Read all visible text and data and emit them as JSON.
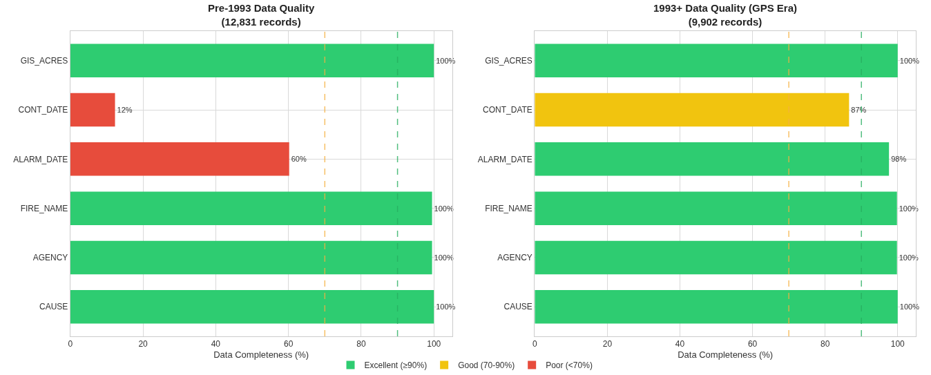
{
  "chart_data": [
    {
      "type": "bar",
      "orientation": "horizontal",
      "title": "Pre-1993 Data Quality\n(12,831 records)",
      "xlabel": "Data Completeness (%)",
      "categories": [
        "GIS_ACRES",
        "CONT_DATE",
        "ALARM_DATE",
        "FIRE_NAME",
        "AGENCY",
        "CAUSE"
      ],
      "series": [
        {
          "name": "Excellent (≥90%)",
          "color": "#2ecc71",
          "values": [
            100,
            null,
            null,
            99.5,
            99.5,
            100
          ],
          "value_labels": [
            "100%",
            null,
            null,
            "100%",
            "100%",
            "100%"
          ]
        },
        {
          "name": "Good (70-90%)",
          "color": "#f1c40f",
          "values": [
            null,
            null,
            null,
            null,
            null,
            null
          ],
          "value_labels": [
            null,
            null,
            null,
            null,
            null,
            null
          ]
        },
        {
          "name": "Poor (<70%)",
          "color": "#e74c3c",
          "values": [
            null,
            12.3,
            60.2,
            null,
            null,
            null
          ],
          "value_labels": [
            null,
            "12%",
            "60%",
            null,
            null,
            null
          ]
        }
      ],
      "xlim": [
        0,
        105
      ],
      "xticks": [
        0,
        20,
        40,
        60,
        80,
        100
      ],
      "ref_lines": [
        {
          "axis": "x",
          "value": 70,
          "color": "#f5b041",
          "line_style": "dashed"
        },
        {
          "axis": "x",
          "value": 90,
          "color": "#27ae60",
          "line_style": "dashed"
        }
      ],
      "grid": true,
      "legend": "bottom"
    },
    {
      "type": "bar",
      "orientation": "horizontal",
      "title": "1993+ Data Quality (GPS Era)\n(9,902 records)",
      "xlabel": "Data Completeness (%)",
      "categories": [
        "GIS_ACRES",
        "CONT_DATE",
        "ALARM_DATE",
        "FIRE_NAME",
        "AGENCY",
        "CAUSE"
      ],
      "series": [
        {
          "color": "#2ecc71",
          "values": [
            100,
            null,
            97.6,
            99.8,
            99.8,
            100
          ],
          "value_labels": [
            "100%",
            null,
            "98%",
            "100%",
            "100%",
            "100%"
          ]
        },
        {
          "color": "#f1c40f",
          "values": [
            null,
            86.6,
            null,
            null,
            null,
            null
          ],
          "value_labels": [
            null,
            "87%",
            null,
            null,
            null,
            null
          ]
        }
      ],
      "xlim": [
        0,
        105
      ],
      "xticks": [
        0,
        20,
        40,
        60,
        80,
        100
      ],
      "ref_lines": [
        {
          "axis": "x",
          "value": 70,
          "color": "#f5b041",
          "line_style": "dashed"
        },
        {
          "axis": "x",
          "value": 90,
          "color": "#27ae60",
          "line_style": "dashed"
        }
      ],
      "grid": true,
      "legend": "bottom"
    }
  ]
}
